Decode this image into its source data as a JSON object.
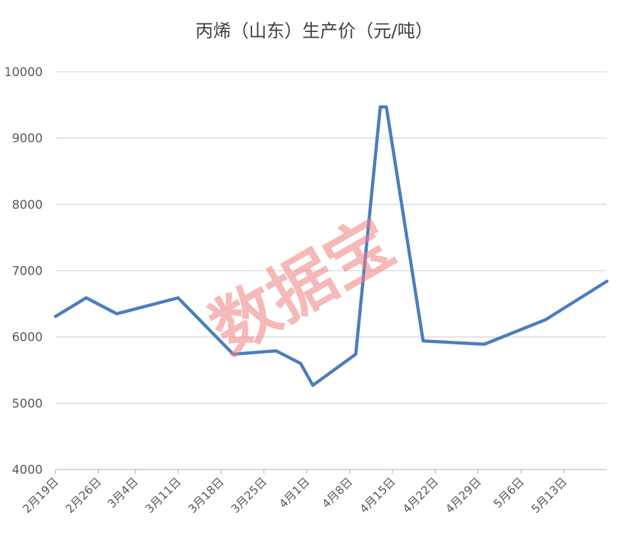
{
  "chart_data": {
    "type": "line",
    "title": "丙烯（山东）生产价（元/吨）",
    "xlabel": "",
    "ylabel": "",
    "ylim": [
      4000,
      10000
    ],
    "yticks": [
      4000,
      5000,
      6000,
      7000,
      8000,
      9000,
      10000
    ],
    "xlim": [
      "2019-02-19",
      "2019-05-20"
    ],
    "x_tick_labels": [
      {
        "date": "2019-02-19",
        "label": "2月19日"
      },
      {
        "date": "2019-02-26",
        "label": "2月26日"
      },
      {
        "date": "2019-03-04",
        "label": "3月4日"
      },
      {
        "date": "2019-03-11",
        "label": "3月11日"
      },
      {
        "date": "2019-03-18",
        "label": "3月18日"
      },
      {
        "date": "2019-03-25",
        "label": "3月25日"
      },
      {
        "date": "2019-04-01",
        "label": "4月1日"
      },
      {
        "date": "2019-04-08",
        "label": "4月8日"
      },
      {
        "date": "2019-04-15",
        "label": "4月15日"
      },
      {
        "date": "2019-04-22",
        "label": "4月22日"
      },
      {
        "date": "2019-04-29",
        "label": "4月29日"
      },
      {
        "date": "2019-05-06",
        "label": "5月6日"
      },
      {
        "date": "2019-05-13",
        "label": "5月13日"
      }
    ],
    "grid": true,
    "legend": "none",
    "series": [
      {
        "color": "#4a7ebb",
        "points": [
          {
            "x": "2019-02-19",
            "y": 6310
          },
          {
            "x": "2019-02-24",
            "y": 6590
          },
          {
            "x": "2019-03-01",
            "y": 6350
          },
          {
            "x": "2019-03-11",
            "y": 6590
          },
          {
            "x": "2019-03-20",
            "y": 5740
          },
          {
            "x": "2019-03-27",
            "y": 5790
          },
          {
            "x": "2019-03-31",
            "y": 5600
          },
          {
            "x": "2019-04-02",
            "y": 5270
          },
          {
            "x": "2019-04-09",
            "y": 5740
          },
          {
            "x": "2019-04-13",
            "y": 9470
          },
          {
            "x": "2019-04-14",
            "y": 9470
          },
          {
            "x": "2019-04-20",
            "y": 5940
          },
          {
            "x": "2019-04-30",
            "y": 5890
          },
          {
            "x": "2019-05-10",
            "y": 6260
          },
          {
            "x": "2019-05-20",
            "y": 6840
          }
        ]
      }
    ]
  },
  "watermark": {
    "text": "数据宝"
  }
}
